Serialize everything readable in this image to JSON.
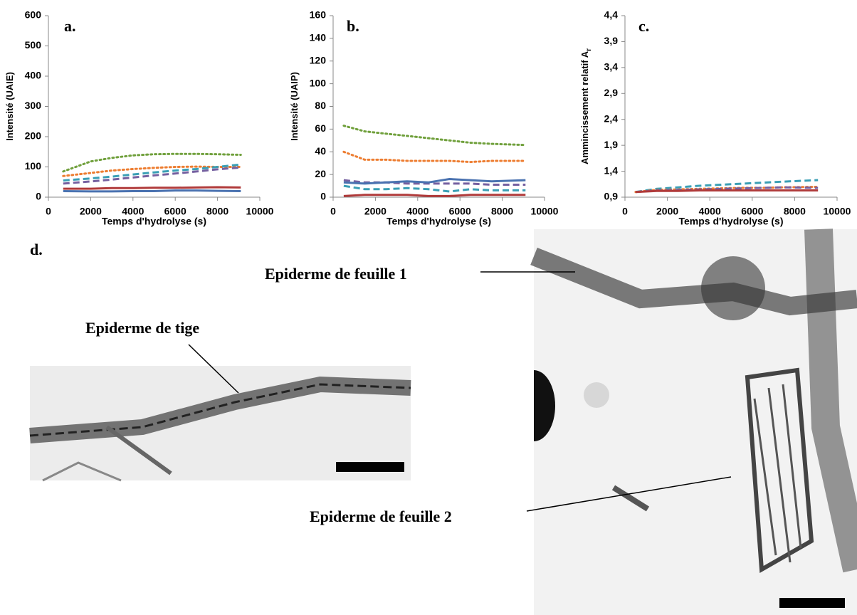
{
  "chart_data": [
    {
      "type": "line",
      "label": "a.",
      "y_label": "Intensité (UAIE)",
      "x_label": "Temps d'hydrolyse (s)",
      "x": [
        700,
        2000,
        3000,
        4000,
        5000,
        6000,
        7000,
        8000,
        9100
      ],
      "xlim": [
        0,
        10000
      ],
      "xticks": [
        0,
        2000,
        4000,
        6000,
        8000,
        10000
      ],
      "ylim": [
        0,
        600
      ],
      "yticks": [
        0,
        100,
        200,
        300,
        400,
        500,
        600
      ],
      "series": [
        {
          "color": "#70a03c",
          "style": "dotted",
          "values": [
            85,
            118,
            130,
            138,
            142,
            143,
            143,
            142,
            140
          ]
        },
        {
          "color": "#ed7d31",
          "style": "dotted",
          "values": [
            70,
            80,
            88,
            93,
            97,
            100,
            101,
            100,
            100
          ]
        },
        {
          "color": "#3a9fb5",
          "style": "dashed",
          "values": [
            55,
            62,
            68,
            75,
            82,
            88,
            93,
            100,
            108
          ]
        },
        {
          "color": "#7560a0",
          "style": "dashed",
          "values": [
            45,
            52,
            58,
            65,
            72,
            78,
            85,
            92,
            98
          ]
        },
        {
          "color": "#b03a3a",
          "style": "solid",
          "values": [
            28,
            28,
            30,
            30,
            31,
            31,
            32,
            33,
            32
          ]
        },
        {
          "color": "#4a72b0",
          "style": "solid",
          "values": [
            20,
            19,
            19,
            20,
            20,
            22,
            22,
            21,
            20
          ]
        }
      ]
    },
    {
      "type": "line",
      "label": "b.",
      "y_label": "Intensité (UAIP)",
      "x_label": "Temps d'hydrolyse (s)",
      "x": [
        500,
        1500,
        2500,
        3500,
        4500,
        5500,
        6500,
        7500,
        9100
      ],
      "xlim": [
        0,
        10000
      ],
      "xticks": [
        0,
        2000,
        4000,
        6000,
        8000,
        10000
      ],
      "ylim": [
        0,
        160
      ],
      "yticks": [
        0,
        20,
        40,
        60,
        80,
        100,
        120,
        140,
        160
      ],
      "series": [
        {
          "color": "#70a03c",
          "style": "dotted",
          "values": [
            63,
            58,
            56,
            54,
            52,
            50,
            48,
            47,
            46
          ]
        },
        {
          "color": "#ed7d31",
          "style": "dotted",
          "values": [
            40,
            33,
            33,
            32,
            32,
            32,
            31,
            32,
            32
          ]
        },
        {
          "color": "#7560a0",
          "style": "dashed",
          "values": [
            15,
            13,
            13,
            12,
            12,
            12,
            12,
            11,
            11
          ]
        },
        {
          "color": "#4a72b0",
          "style": "solid",
          "values": [
            13,
            12,
            13,
            14,
            13,
            16,
            15,
            14,
            15
          ]
        },
        {
          "color": "#3a9fb5",
          "style": "dashed",
          "values": [
            10,
            7,
            7,
            8,
            7,
            5,
            7,
            6,
            6
          ]
        },
        {
          "color": "#b03a3a",
          "style": "solid",
          "values": [
            1,
            2,
            2,
            2,
            1,
            1,
            2,
            2,
            2
          ]
        }
      ]
    },
    {
      "type": "line",
      "label": "c.",
      "y_label": "Ammincissement relatif A",
      "y_label_sub": "r",
      "x_label": "Temps d'hydrolyse (s)",
      "x": [
        500,
        1500,
        2500,
        3500,
        4500,
        5500,
        6500,
        7500,
        9100
      ],
      "xlim": [
        0,
        10000
      ],
      "xticks": [
        0,
        2000,
        4000,
        6000,
        8000,
        10000
      ],
      "ylim": [
        0.9,
        4.4
      ],
      "yticks": [
        {
          "value": 0.9,
          "label": "0,9"
        },
        {
          "value": 1.4,
          "label": "1,4"
        },
        {
          "value": 1.9,
          "label": "1,9"
        },
        {
          "value": 2.4,
          "label": "2,4"
        },
        {
          "value": 2.9,
          "label": "2,9"
        },
        {
          "value": 3.4,
          "label": "3,4"
        },
        {
          "value": 3.9,
          "label": "3,9"
        },
        {
          "value": 4.4,
          "label": "4,4"
        }
      ],
      "series": [
        {
          "color": "#3a9fb5",
          "style": "dashed",
          "values": [
            1.0,
            1.06,
            1.09,
            1.12,
            1.14,
            1.16,
            1.18,
            1.2,
            1.23
          ]
        },
        {
          "color": "#ed7d31",
          "style": "dotted",
          "values": [
            1.0,
            1.04,
            1.05,
            1.06,
            1.07,
            1.08,
            1.08,
            1.09,
            1.1
          ]
        },
        {
          "color": "#7560a0",
          "style": "dashed",
          "values": [
            1.0,
            1.03,
            1.04,
            1.05,
            1.06,
            1.07,
            1.08,
            1.09,
            1.08
          ]
        },
        {
          "color": "#b03a3a",
          "style": "solid",
          "values": [
            1.0,
            1.02,
            1.02,
            1.03,
            1.03,
            1.03,
            1.03,
            1.03,
            1.03
          ]
        }
      ]
    }
  ],
  "figure_d": {
    "label": "d.",
    "annotations": [
      "Epiderme de feuille 1",
      "Epiderme de tige",
      "Epiderme de feuille 2"
    ]
  }
}
